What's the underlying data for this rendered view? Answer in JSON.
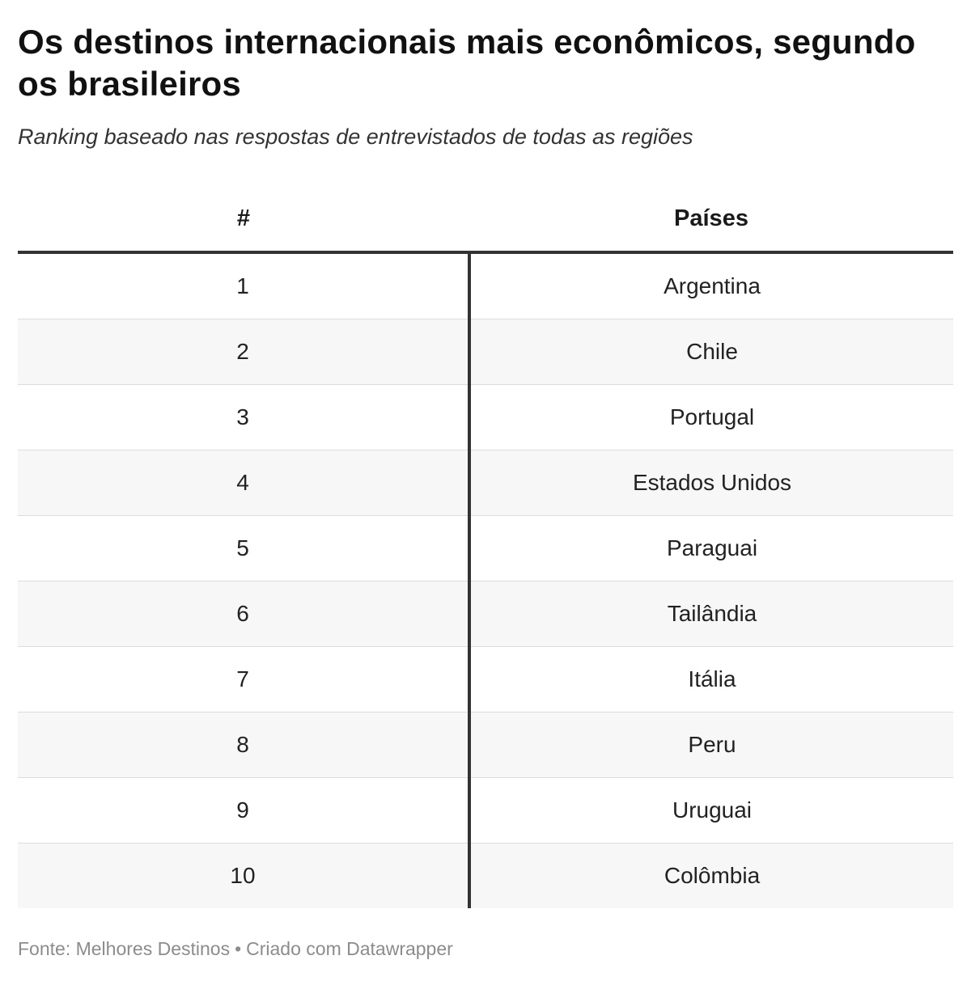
{
  "header": {
    "title": "Os destinos internacionais mais econômicos, segundo os brasileiros",
    "subtitle": "Ranking baseado nas respostas de entrevistados de todas as regiões"
  },
  "chart_data": {
    "type": "table",
    "columns": [
      "#",
      "Países"
    ],
    "rows": [
      [
        "1",
        "Argentina"
      ],
      [
        "2",
        "Chile"
      ],
      [
        "3",
        "Portugal"
      ],
      [
        "4",
        "Estados Unidos"
      ],
      [
        "5",
        "Paraguai"
      ],
      [
        "6",
        "Tailândia"
      ],
      [
        "7",
        "Itália"
      ],
      [
        "8",
        "Peru"
      ],
      [
        "9",
        "Uruguai"
      ],
      [
        "10",
        "Colômbia"
      ]
    ]
  },
  "footer": {
    "source": "Fonte: Melhores Destinos",
    "separator": "•",
    "credit": "Criado com Datawrapper"
  },
  "colors": {
    "text": "#1a1a1a",
    "zebra_row": "#f7f7f7",
    "rule": "#333333",
    "footer_text": "#8c8c8c"
  }
}
